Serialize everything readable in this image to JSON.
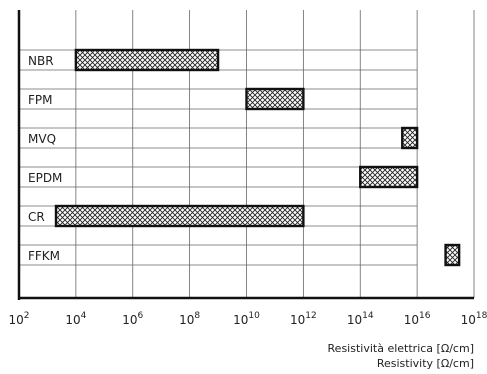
{
  "chart_data": {
    "type": "bar",
    "orientation": "horizontal-range",
    "x_scale": "log",
    "x_range": [
      100.0,
      1e+18
    ],
    "x_ticks": [
      100.0,
      10000.0,
      1000000.0,
      100000000.0,
      10000000000.0,
      1000000000000.0,
      100000000000000.0,
      1e+16,
      1e+18
    ],
    "x_tick_labels": [
      {
        "base": "10",
        "exp": "2"
      },
      {
        "base": "10",
        "exp": "4"
      },
      {
        "base": "10",
        "exp": "6"
      },
      {
        "base": "10",
        "exp": "8"
      },
      {
        "base": "10",
        "exp": "10"
      },
      {
        "base": "10",
        "exp": "12"
      },
      {
        "base": "10",
        "exp": "14"
      },
      {
        "base": "10",
        "exp": "16"
      },
      {
        "base": "10",
        "exp": "18"
      }
    ],
    "grid": "vertical at each tick",
    "bar_fill": "crosshatch",
    "categories": [
      "NBR",
      "FPM",
      "MVQ",
      "EPDM",
      "CR",
      "FFKM"
    ],
    "ranges": [
      {
        "label": "NBR",
        "min": 10000.0,
        "max": 1000000000.0
      },
      {
        "label": "FPM",
        "min": 10000000000.0,
        "max": 1000000000000.0
      },
      {
        "label": "MVQ",
        "min": 3000000000000000.0,
        "max": 1e+16
      },
      {
        "label": "EPDM",
        "min": 100000000000000.0,
        "max": 1e+16
      },
      {
        "label": "CR",
        "min": 2000.0,
        "max": 1000000000000.0
      },
      {
        "label": "FFKM",
        "min": 1e+17,
        "max": 3e+17
      }
    ],
    "xlabel": "Resistività elettrica [Ω/cm]",
    "xlabel_en": "Resistivity [Ω/cm]"
  },
  "colors": {
    "bar_border": "#111111",
    "hatch": "#222222",
    "grid": "#666666",
    "axis": "#111111",
    "background": "#ffffff"
  }
}
